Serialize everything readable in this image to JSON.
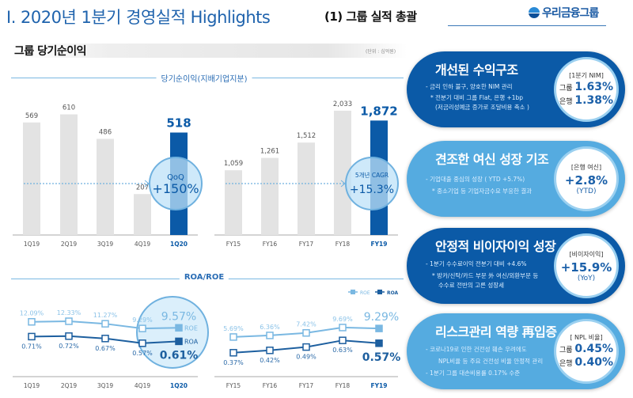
{
  "header": {
    "title": "I. 2020년 1분기 경영실적 Highlights",
    "subtitle": "(1) 그룹 실적 총괄",
    "logo_text": "우리금융그룹"
  },
  "section": {
    "title": "그룹 당기순이익",
    "unit": "(단위 : 십억원)"
  },
  "colors": {
    "primary": "#0b5aa7",
    "light": "#55abe0",
    "bar_gray": "#e3e3e3",
    "roe": "#7ab8e2",
    "roa": "#1d5f9f"
  },
  "chart_data": [
    {
      "type": "bar",
      "title": "당기순이익(지배기업지분)",
      "categories": [
        "1Q19",
        "2Q19",
        "3Q19",
        "4Q19",
        "1Q20"
      ],
      "values": [
        569,
        610,
        486,
        207,
        518
      ],
      "highlight": "1Q20",
      "annotation": {
        "label": "QoQ",
        "value": "+150%"
      }
    },
    {
      "type": "bar",
      "categories": [
        "FY15",
        "FY16",
        "FY17",
        "FY18",
        "FY19"
      ],
      "values": [
        1059,
        1261,
        1512,
        2033,
        1872
      ],
      "value_labels": [
        "1,059",
        "1,261",
        "1,512",
        "2,033",
        "1,872"
      ],
      "highlight": "FY19",
      "annotation": {
        "label": "5개년 CAGR",
        "value": "+15.3%"
      }
    },
    {
      "type": "line",
      "title": "ROA/ROE",
      "legend": [
        "ROE",
        "ROA"
      ],
      "legend_position": "top-right",
      "categories": [
        "1Q19",
        "2Q19",
        "3Q19",
        "4Q19",
        "1Q20"
      ],
      "series": [
        {
          "name": "ROE",
          "values": [
            12.09,
            12.33,
            11.27,
            9.29,
            9.57
          ]
        },
        {
          "name": "ROA",
          "values": [
            0.71,
            0.72,
            0.67,
            0.57,
            0.61
          ]
        }
      ],
      "highlight": "1Q20"
    },
    {
      "type": "line",
      "categories": [
        "FY15",
        "FY16",
        "FY17",
        "FY18",
        "FY19"
      ],
      "series": [
        {
          "name": "ROE",
          "values": [
            5.69,
            6.36,
            7.42,
            9.69,
            9.29
          ]
        },
        {
          "name": "ROA",
          "values": [
            0.37,
            0.42,
            0.49,
            0.63,
            0.57
          ]
        }
      ],
      "highlight": "FY19"
    }
  ],
  "panels": [
    {
      "heading": "개선된 수익구조",
      "lines": [
        "-  금리 인하 불구, 양호한 NIM 관리",
        "* 전분기 대비 그룹 Flat, 은행 +1bp",
        "(저금리성예금 증가로 조달비용 축소 )"
      ],
      "circle_title": "[1분기 NIM]",
      "rows": [
        {
          "label": "그룹",
          "value": "1.63%"
        },
        {
          "label": "은행",
          "value": "1.38%"
        }
      ]
    },
    {
      "heading": "견조한 여신 성장 기조",
      "lines": [
        "- 기업대출 중심의  성장 ( YTD +5.7%)",
        "* 중소기업 등 기업자금수요 부응한 결과"
      ],
      "circle_title": "[은행 여신]",
      "value": "+2.8%",
      "note": "(YTD)"
    },
    {
      "heading": "안정적 비이자이익 성장",
      "lines": [
        "- 1분기 수수료이익 전분기 대비 +4.6%",
        "* 방카/신탁/카드 부문 外 여신/외환부문 등",
        "수수료 전반의 고른 성장세"
      ],
      "circle_title": "[비이자이익]",
      "value": "+15.9%",
      "note": "(YoY)"
    },
    {
      "heading": "리스크관리 역량 再입증",
      "lines": [
        "- 코로나19로 인한 건전성 훼손 우려에도",
        "NPL비율 등 주요 건전성 비율 안정적 관리",
        "- 1분기 그룹 대손비용률 0.17% 수준"
      ],
      "circle_title": "[ NPL 비율]",
      "rows": [
        {
          "label": "그룹",
          "value": "0.45%"
        },
        {
          "label": "은행",
          "value": "0.40%"
        }
      ]
    }
  ]
}
